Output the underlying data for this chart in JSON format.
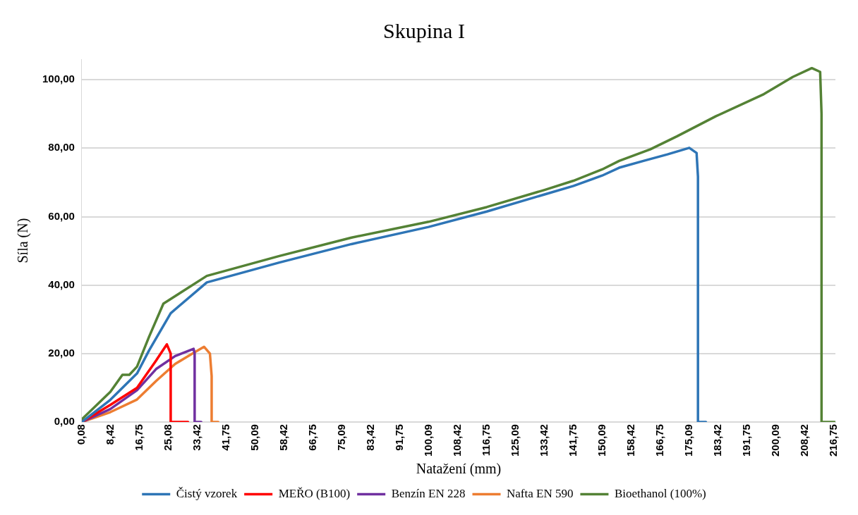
{
  "chart_data": {
    "type": "line",
    "title": "Skupina I",
    "xlabel": "Natažení (mm)",
    "ylabel": "Síla (N)",
    "xlim": [
      0.08,
      217.2
    ],
    "ylim": [
      0,
      106
    ],
    "xticks": [
      {
        "value": 0.08,
        "label": "0,08"
      },
      {
        "value": 8.42,
        "label": "8,42"
      },
      {
        "value": 16.75,
        "label": "16,75"
      },
      {
        "value": 25.08,
        "label": "25,08"
      },
      {
        "value": 33.42,
        "label": "33,42"
      },
      {
        "value": 41.75,
        "label": "41,75"
      },
      {
        "value": 50.09,
        "label": "50,09"
      },
      {
        "value": 58.42,
        "label": "58,42"
      },
      {
        "value": 66.75,
        "label": "66,75"
      },
      {
        "value": 75.09,
        "label": "75,09"
      },
      {
        "value": 83.42,
        "label": "83,42"
      },
      {
        "value": 91.75,
        "label": "91,75"
      },
      {
        "value": 100.09,
        "label": "100,09"
      },
      {
        "value": 108.42,
        "label": "108,42"
      },
      {
        "value": 116.75,
        "label": "116,75"
      },
      {
        "value": 125.09,
        "label": "125,09"
      },
      {
        "value": 133.42,
        "label": "133,42"
      },
      {
        "value": 141.75,
        "label": "141,75"
      },
      {
        "value": 150.09,
        "label": "150,09"
      },
      {
        "value": 158.42,
        "label": "158,42"
      },
      {
        "value": 166.75,
        "label": "166,75"
      },
      {
        "value": 175.09,
        "label": "175,09"
      },
      {
        "value": 183.42,
        "label": "183,42"
      },
      {
        "value": 191.75,
        "label": "191,75"
      },
      {
        "value": 200.09,
        "label": "200,09"
      },
      {
        "value": 208.42,
        "label": "208,42"
      },
      {
        "value": 216.75,
        "label": "216,75"
      }
    ],
    "yticks": [
      {
        "value": 0,
        "label": "0,00"
      },
      {
        "value": 20,
        "label": "20,00"
      },
      {
        "value": 40,
        "label": "40,00"
      },
      {
        "value": 60,
        "label": "60,00"
      },
      {
        "value": 80,
        "label": "80,00"
      },
      {
        "value": 100,
        "label": "100,00"
      }
    ],
    "grid": "y",
    "legend": "bottom",
    "marker": "none",
    "line_style": "solid",
    "series": [
      {
        "name": "Čistý vzorek",
        "color": "#2e75b6",
        "x": [
          0.08,
          8.3,
          16,
          19.5,
          25.7,
          36.1,
          57,
          77.8,
          100,
          116.75,
          133.4,
          141.75,
          150,
          154.9,
          161.9,
          168.8,
          175.1,
          177.2,
          177.6,
          177.6,
          179.9
        ],
        "values": [
          0,
          6.5,
          14.2,
          21,
          31.8,
          40.8,
          46.6,
          52,
          57,
          61.5,
          66.5,
          69,
          72,
          74.3,
          76.3,
          78.2,
          80.1,
          78.6,
          71.7,
          0,
          0
        ]
      },
      {
        "name": "MEŘO (B100)",
        "color": "#ff0000",
        "x": [
          0.08,
          8.3,
          16,
          21.5,
          24.6,
          25.7,
          25.7,
          30.7
        ],
        "values": [
          0,
          5,
          10,
          18,
          22.7,
          20,
          0,
          0
        ]
      },
      {
        "name": "Benzín EN 228",
        "color": "#7030a0",
        "x": [
          0.08,
          8.3,
          16,
          21.5,
          27,
          32.3,
          32.6,
          32.6,
          34.5
        ],
        "values": [
          0,
          3.8,
          9.3,
          15.5,
          19.3,
          21.4,
          20,
          0,
          0
        ]
      },
      {
        "name": "Nafta EN 590",
        "color": "#ed7d31",
        "x": [
          0.08,
          8.3,
          16,
          21.5,
          27,
          32.6,
          35.3,
          37,
          37.5,
          37.5,
          39.4
        ],
        "values": [
          0,
          2.9,
          6.6,
          12,
          17,
          20.4,
          22,
          20,
          13.5,
          0,
          0
        ]
      },
      {
        "name": "Bioethanol (100%)",
        "color": "#548235",
        "x": [
          0.08,
          8.3,
          11.8,
          13.8,
          16,
          19.5,
          23.6,
          36.1,
          57,
          77.8,
          100,
          116.75,
          133.4,
          141.75,
          150,
          154.9,
          163.9,
          171.6,
          182.7,
          196.6,
          204.9,
          210.4,
          212.8,
          213.2,
          213.2,
          217
        ],
        "values": [
          0.8,
          8.8,
          13.8,
          13.8,
          16.2,
          25,
          34.6,
          42.7,
          48.5,
          53.9,
          58.5,
          62.8,
          67.8,
          70.5,
          73.8,
          76.3,
          79.7,
          83.5,
          89.3,
          95.8,
          100.8,
          103.4,
          102.3,
          90,
          0,
          0
        ]
      }
    ]
  }
}
